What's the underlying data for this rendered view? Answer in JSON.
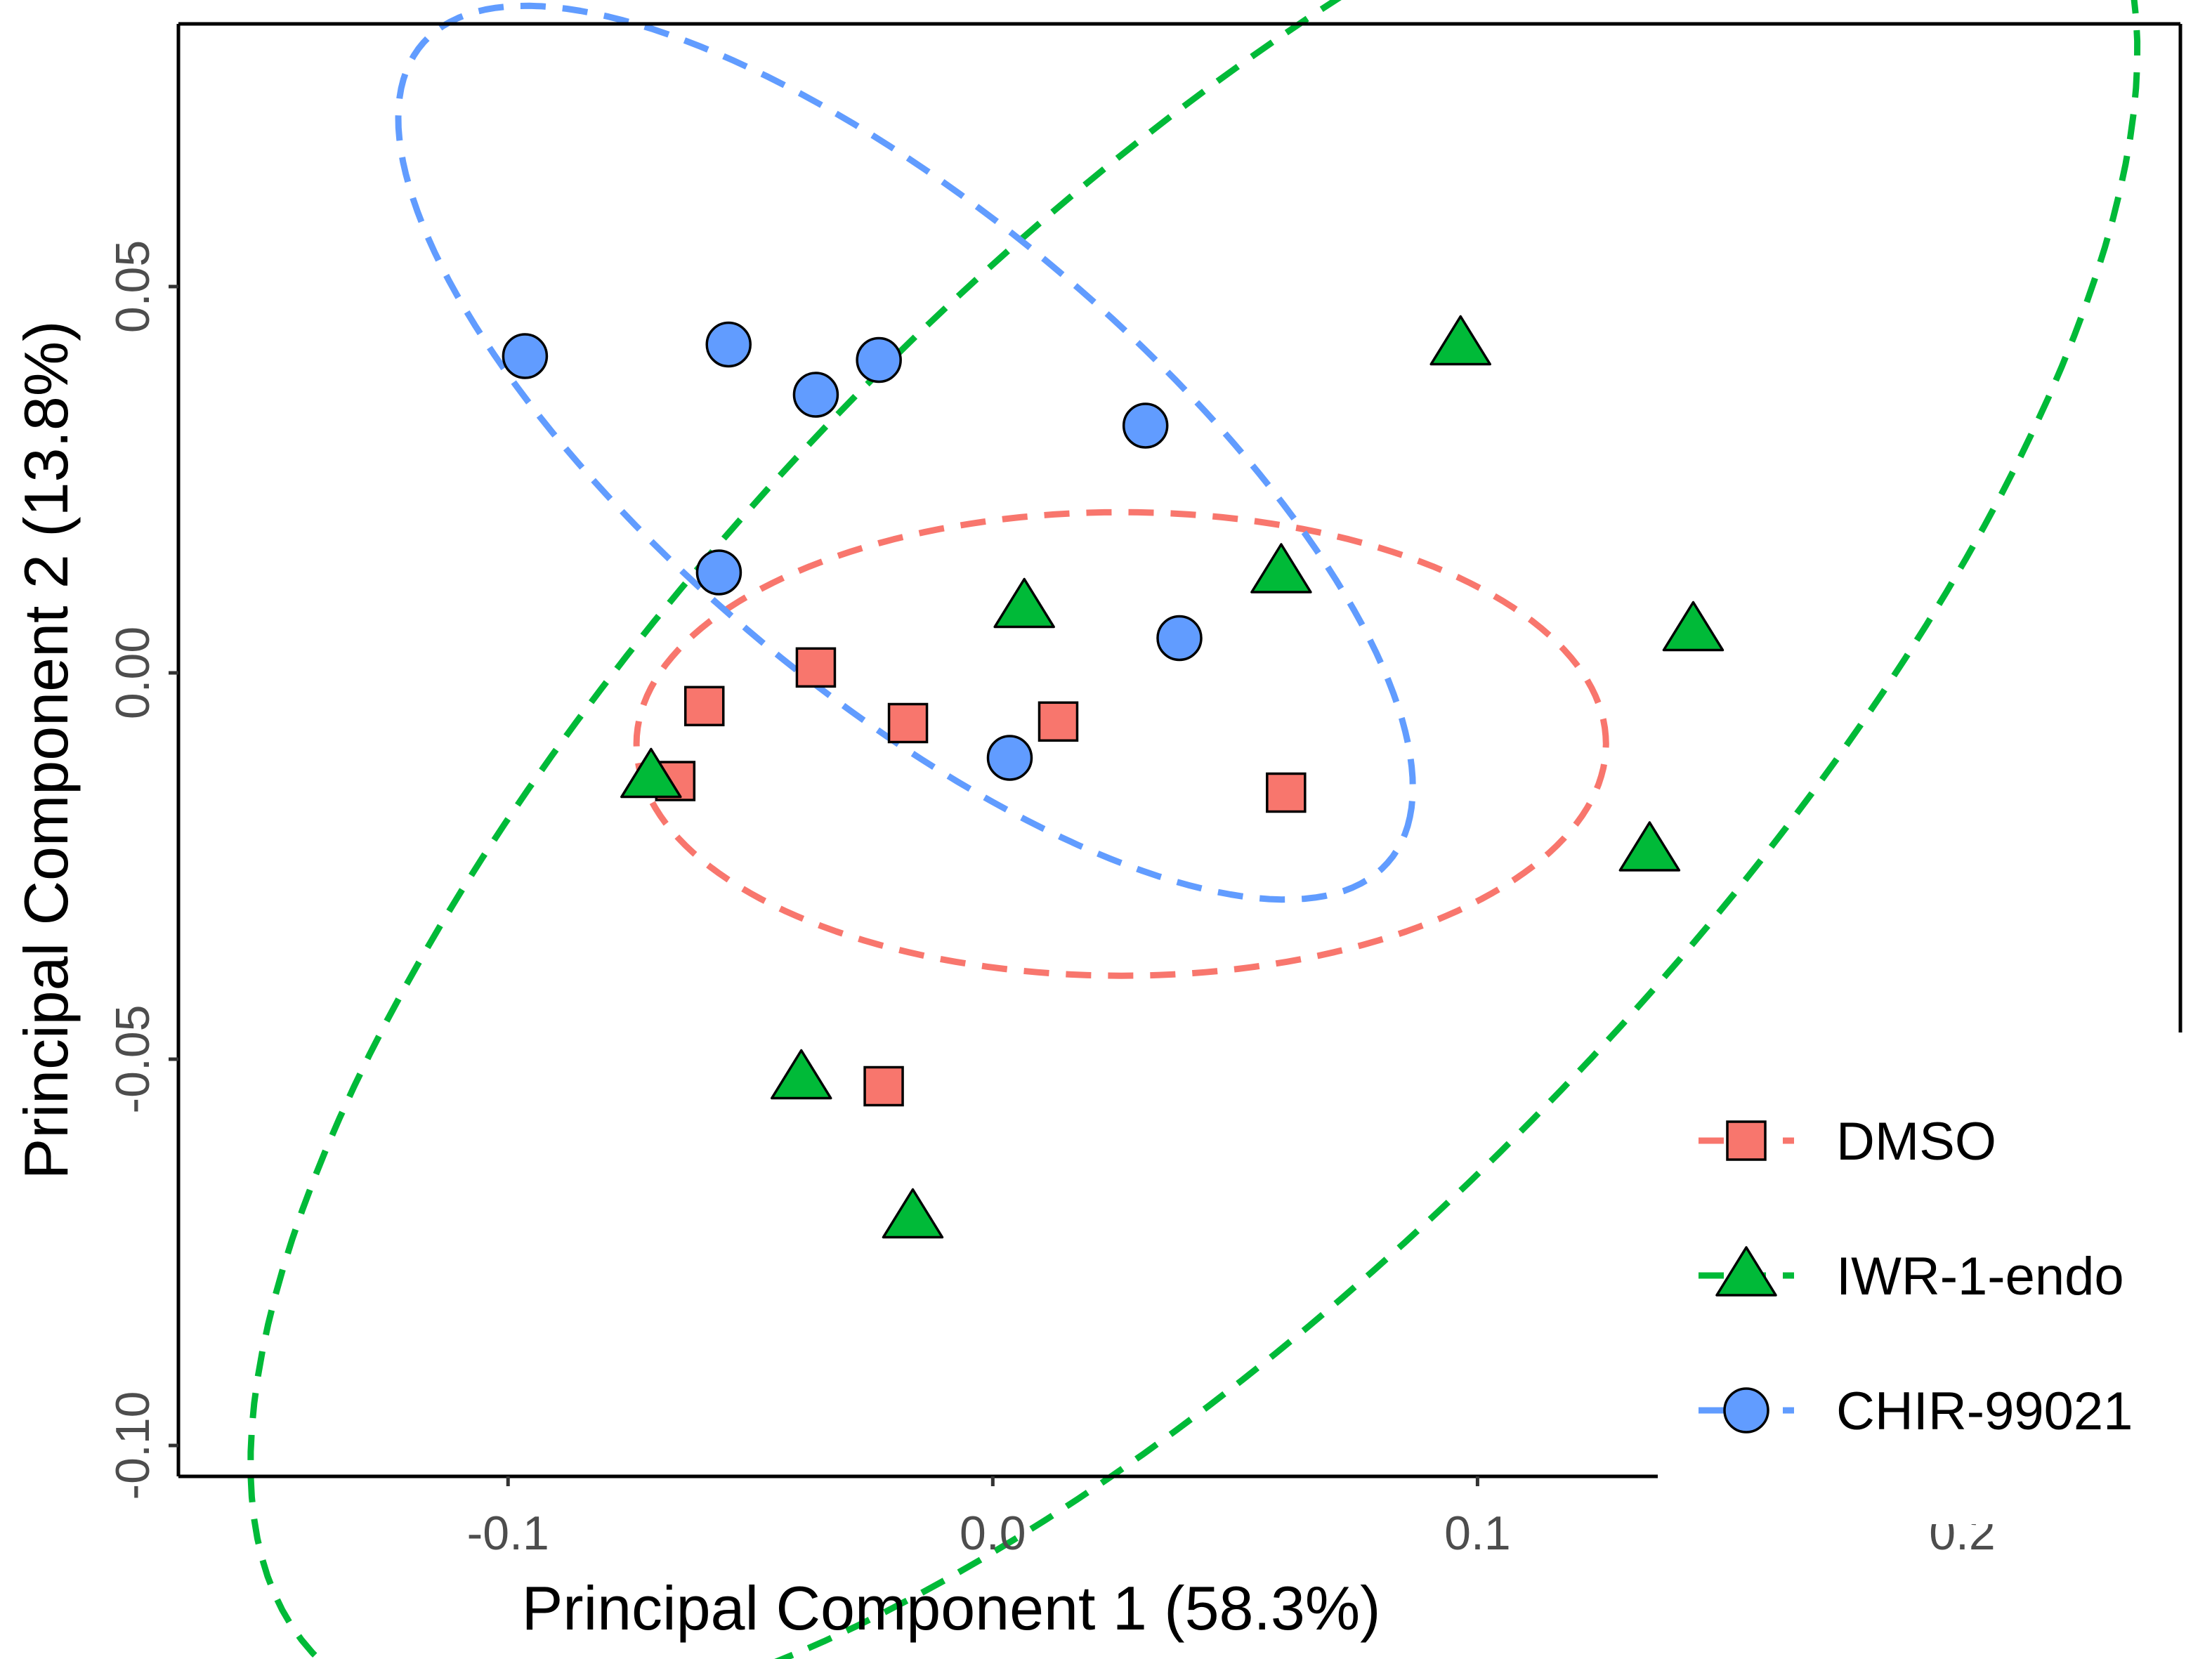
{
  "chart_data": {
    "type": "scatter",
    "xlabel": "Principal Component 1 (58.3%)",
    "ylabel": "Principal Component 2 (13.8%)",
    "xlim": [
      -0.168,
      0.245
    ],
    "ylim": [
      -0.104,
      0.084
    ],
    "x_ticks": [
      {
        "value": -0.1,
        "label": "-0.1"
      },
      {
        "value": 0.0,
        "label": "0.0"
      },
      {
        "value": 0.1,
        "label": "0.1"
      },
      {
        "value": 0.2,
        "label": "0.2"
      }
    ],
    "y_ticks": [
      {
        "value": -0.1,
        "label": "-0.10"
      },
      {
        "value": -0.05,
        "label": "-0.05"
      },
      {
        "value": 0.0,
        "label": "0.00"
      },
      {
        "value": 0.05,
        "label": "0.05"
      }
    ],
    "grid": false,
    "legend_position": "bottom-right",
    "series": [
      {
        "name": "DMSO",
        "color": "#F8766D",
        "marker": "square",
        "points": [
          {
            "x": -0.0365,
            "y": 0.0007
          },
          {
            "x": -0.0595,
            "y": -0.0043
          },
          {
            "x": -0.0175,
            "y": -0.0065
          },
          {
            "x": 0.0135,
            "y": -0.0063
          },
          {
            "x": -0.0655,
            "y": -0.014
          },
          {
            "x": 0.0605,
            "y": -0.0155
          },
          {
            "x": -0.0225,
            "y": -0.0535
          }
        ],
        "ellipse": {
          "cx": 0.0265,
          "cy": -0.0092,
          "rx": 0.1,
          "ry": 0.03,
          "angle_deg": 0
        }
      },
      {
        "name": "IWR-1-endo",
        "color": "#00BA38",
        "marker": "triangle",
        "points": [
          {
            "x": 0.0965,
            "y": 0.0425
          },
          {
            "x": 0.0595,
            "y": 0.013
          },
          {
            "x": 0.0065,
            "y": 0.0085
          },
          {
            "x": 0.1445,
            "y": 0.0055
          },
          {
            "x": -0.0705,
            "y": -0.0135
          },
          {
            "x": 0.1355,
            "y": -0.023
          },
          {
            "x": -0.0395,
            "y": -0.0525
          },
          {
            "x": -0.0165,
            "y": -0.0705
          }
        ],
        "ellipse": {
          "cx": 0.0415,
          "cy": -0.011,
          "rx": 0.2185,
          "ry": 0.076,
          "angle_deg": 29
        }
      },
      {
        "name": "CHIR-99021",
        "color": "#619CFF",
        "marker": "circle",
        "points": [
          {
            "x": -0.0965,
            "y": 0.041
          },
          {
            "x": -0.0545,
            "y": 0.0425
          },
          {
            "x": -0.0365,
            "y": 0.036
          },
          {
            "x": -0.0235,
            "y": 0.0405
          },
          {
            "x": 0.0315,
            "y": 0.032
          },
          {
            "x": -0.0565,
            "y": 0.013
          },
          {
            "x": 0.0385,
            "y": 0.0045
          },
          {
            "x": 0.0035,
            "y": -0.011
          }
        ],
        "ellipse": {
          "cx": -0.018,
          "cy": 0.0285,
          "rx": 0.1143,
          "ry": 0.0351,
          "angle_deg": -25
        }
      }
    ]
  }
}
